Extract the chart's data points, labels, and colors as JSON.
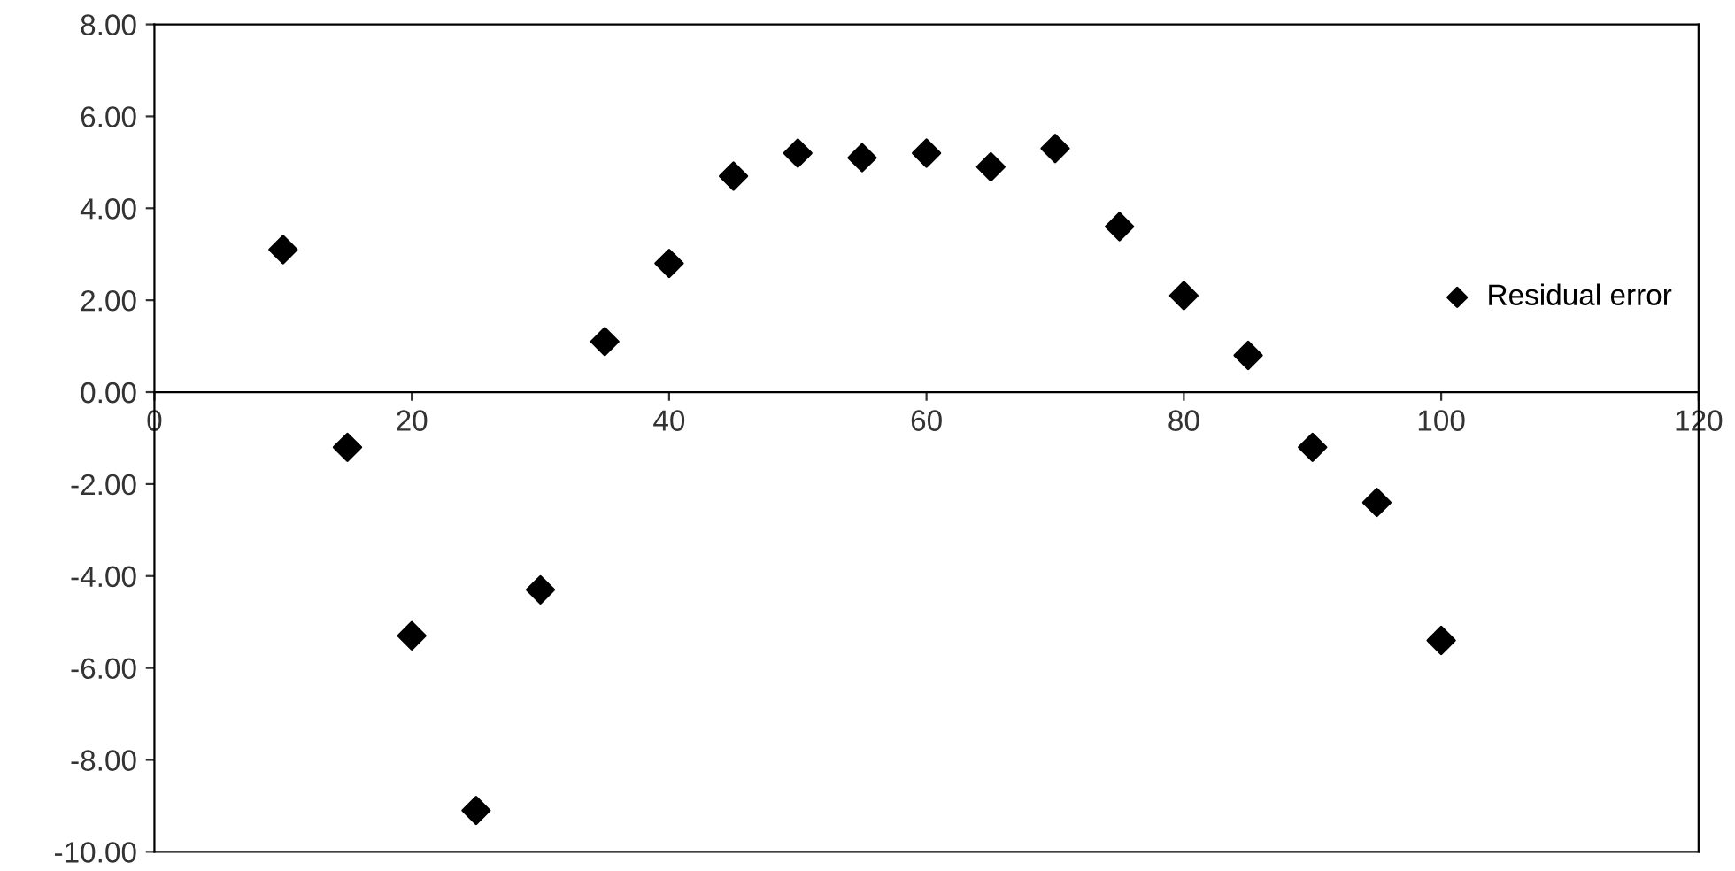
{
  "chart_data": {
    "type": "scatter",
    "x": [
      10,
      15,
      20,
      25,
      30,
      35,
      40,
      45,
      50,
      55,
      60,
      65,
      70,
      75,
      80,
      85,
      90,
      95,
      100
    ],
    "series": [
      {
        "name": "Residual error",
        "color": "#000000",
        "values": [
          3.1,
          -1.2,
          -5.3,
          -9.1,
          -4.3,
          1.1,
          2.8,
          4.7,
          5.2,
          5.1,
          5.2,
          4.9,
          5.3,
          3.6,
          2.1,
          0.8,
          -1.2,
          -2.4,
          -5.4
        ]
      }
    ],
    "xlim": [
      0,
      120
    ],
    "xticks": [
      0,
      20,
      40,
      60,
      80,
      100,
      120
    ],
    "ylim": [
      -10,
      8
    ],
    "yticks": [
      {
        "value": -10,
        "label": "-10.00"
      },
      {
        "value": -8,
        "label": "-8.00"
      },
      {
        "value": -6,
        "label": "-6.00"
      },
      {
        "value": -4,
        "label": "-4.00"
      },
      {
        "value": -2,
        "label": "-2.00"
      },
      {
        "value": 0,
        "label": "0.00"
      },
      {
        "value": 2,
        "label": "2.00"
      },
      {
        "value": 4,
        "label": "4.00"
      },
      {
        "value": 6,
        "label": "6.00"
      },
      {
        "value": 8,
        "label": "8.00"
      }
    ],
    "marker": "diamond",
    "grid": false,
    "legend": "right"
  }
}
